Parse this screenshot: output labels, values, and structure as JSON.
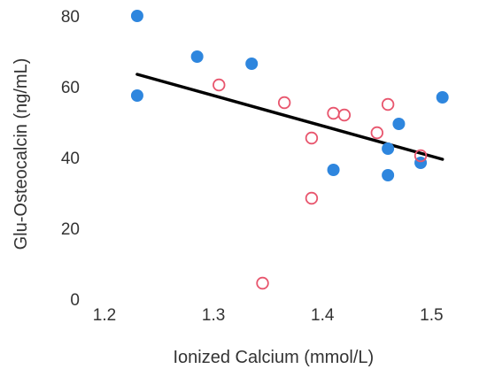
{
  "chart_data": {
    "type": "scatter",
    "xlabel": "Ionized Calcium (mmol/L)",
    "ylabel": "Glu-Osteocalcin (ng/mL)",
    "xlim": [
      1.2,
      1.52
    ],
    "ylim": [
      0,
      82
    ],
    "x_ticks": [
      "1.2",
      "1.3",
      "1.4",
      "1.5"
    ],
    "x_tick_values": [
      1.2,
      1.3,
      1.4,
      1.5
    ],
    "y_ticks": [
      "0",
      "20",
      "40",
      "60",
      "80"
    ],
    "y_tick_values": [
      0,
      20,
      40,
      60,
      80
    ],
    "grid": false,
    "legend": "none",
    "series": [
      {
        "marker": "filled-circle",
        "color": "#2e86de",
        "points": [
          {
            "x": 1.23,
            "y": 80
          },
          {
            "x": 1.23,
            "y": 57.5
          },
          {
            "x": 1.285,
            "y": 68.5
          },
          {
            "x": 1.335,
            "y": 66.5
          },
          {
            "x": 1.41,
            "y": 36.5
          },
          {
            "x": 1.46,
            "y": 42.5
          },
          {
            "x": 1.46,
            "y": 35
          },
          {
            "x": 1.47,
            "y": 49.5
          },
          {
            "x": 1.49,
            "y": 38.5
          },
          {
            "x": 1.51,
            "y": 57
          }
        ]
      },
      {
        "marker": "open-circle",
        "color": "#e8556d",
        "points": [
          {
            "x": 1.305,
            "y": 60.5
          },
          {
            "x": 1.345,
            "y": 4.5
          },
          {
            "x": 1.365,
            "y": 55.5
          },
          {
            "x": 1.39,
            "y": 45.5
          },
          {
            "x": 1.39,
            "y": 28.5
          },
          {
            "x": 1.41,
            "y": 52.5
          },
          {
            "x": 1.42,
            "y": 52
          },
          {
            "x": 1.45,
            "y": 47
          },
          {
            "x": 1.46,
            "y": 55
          },
          {
            "x": 1.49,
            "y": 40.5
          }
        ]
      }
    ],
    "trendline": {
      "color": "#000000",
      "start": {
        "x": 1.23,
        "y": 63.5
      },
      "end": {
        "x": 1.51,
        "y": 39.5
      }
    }
  }
}
